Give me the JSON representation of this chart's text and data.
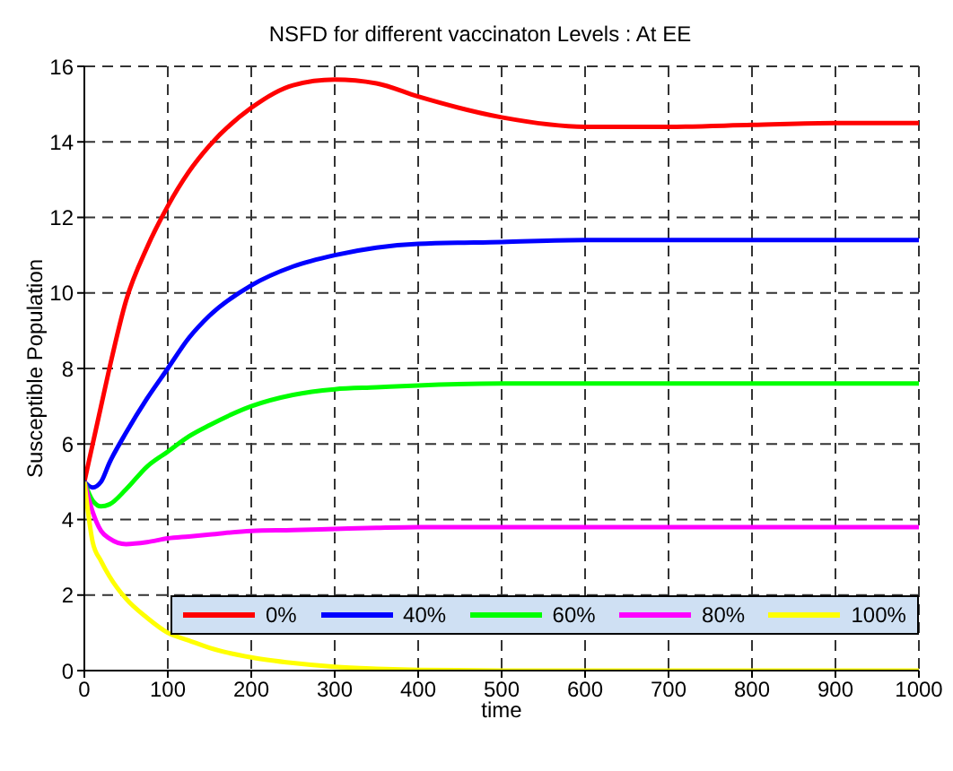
{
  "chart_data": {
    "type": "line",
    "title": "NSFD for different vaccinaton Levels : At EE",
    "xlabel": "time",
    "ylabel": "Susceptible Population",
    "x": [
      0,
      10,
      20,
      30,
      50,
      75,
      100,
      125,
      150,
      200,
      250,
      300,
      350,
      400,
      500,
      600,
      700,
      800,
      900,
      1000
    ],
    "series": [
      {
        "name": "0%",
        "color": "#ff0000",
        "values": [
          5,
          6,
          7,
          8,
          9.8,
          11.2,
          12.3,
          13.2,
          13.9,
          14.9,
          15.5,
          15.65,
          15.55,
          15.2,
          14.65,
          14.4,
          14.4,
          14.45,
          14.5,
          14.5
        ]
      },
      {
        "name": "40%",
        "color": "#0000ff",
        "values": [
          5,
          4.85,
          5,
          5.5,
          6.3,
          7.2,
          8,
          8.8,
          9.4,
          10.2,
          10.7,
          11,
          11.2,
          11.3,
          11.35,
          11.4,
          11.4,
          11.4,
          11.4,
          11.4
        ]
      },
      {
        "name": "60%",
        "color": "#00ff00",
        "values": [
          5,
          4.5,
          4.35,
          4.4,
          4.8,
          5.4,
          5.8,
          6.2,
          6.5,
          7,
          7.3,
          7.45,
          7.5,
          7.55,
          7.6,
          7.6,
          7.6,
          7.6,
          7.6,
          7.6
        ]
      },
      {
        "name": "80%",
        "color": "#ff00ff",
        "values": [
          5,
          4.2,
          3.7,
          3.5,
          3.35,
          3.4,
          3.5,
          3.55,
          3.6,
          3.7,
          3.72,
          3.75,
          3.78,
          3.8,
          3.8,
          3.8,
          3.8,
          3.8,
          3.8,
          3.8
        ]
      },
      {
        "name": "100%",
        "color": "#ffff00",
        "values": [
          5,
          3.4,
          2.9,
          2.5,
          1.9,
          1.4,
          1,
          0.8,
          0.6,
          0.35,
          0.2,
          0.1,
          0.05,
          0.02,
          0,
          0,
          0,
          0,
          0,
          0
        ]
      }
    ],
    "xlim": [
      0,
      1000
    ],
    "xticks": [
      0,
      100,
      200,
      300,
      400,
      500,
      600,
      700,
      800,
      900,
      1000
    ],
    "ylim": [
      0,
      16
    ],
    "yticks": [
      0,
      2,
      4,
      6,
      8,
      10,
      12,
      14,
      16
    ],
    "grid": true,
    "legend": "bottom right",
    "line_style": "solid",
    "marker": "none"
  }
}
